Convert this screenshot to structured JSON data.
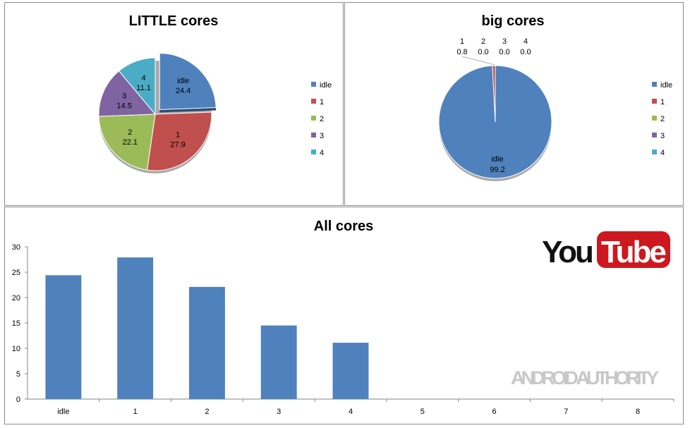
{
  "chart_data": [
    {
      "type": "pie",
      "title": "LITTLE cores",
      "categories": [
        "idle",
        "1",
        "2",
        "3",
        "4"
      ],
      "values": [
        24.4,
        27.9,
        22.1,
        14.5,
        11.1
      ],
      "colors": [
        "#4f81bd",
        "#c0504d",
        "#9bbb59",
        "#8064a2",
        "#4bacc6"
      ],
      "exploded": "idle",
      "legend": "right"
    },
    {
      "type": "pie",
      "title": "big cores",
      "categories": [
        "idle",
        "1",
        "2",
        "3",
        "4"
      ],
      "values": [
        99.2,
        0.8,
        0.0,
        0.0,
        0.0
      ],
      "colors": [
        "#4f81bd",
        "#c0504d",
        "#9bbb59",
        "#8064a2",
        "#4bacc6"
      ],
      "legend": "right"
    },
    {
      "type": "bar",
      "title": "All cores",
      "categories": [
        "idle",
        "1",
        "2",
        "3",
        "4",
        "5",
        "6",
        "7",
        "8"
      ],
      "values": [
        24.4,
        27.9,
        22.1,
        14.5,
        11.1,
        null,
        null,
        null,
        null
      ],
      "ylim": [
        0,
        30
      ],
      "yticks": [
        0,
        5,
        10,
        15,
        20,
        25,
        30
      ],
      "color": "#4f81bd",
      "grid": false,
      "legend": "none"
    }
  ],
  "logos": {
    "youtube": "YouTube",
    "watermark": "ANDROID AUTHORITY"
  }
}
